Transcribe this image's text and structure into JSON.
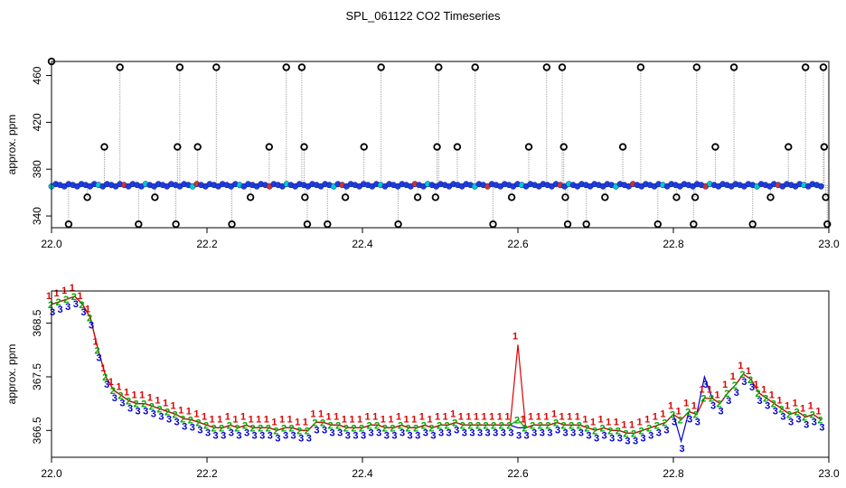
{
  "title": "SPL_061122  CO2 Timeseries",
  "chart_data": [
    {
      "type": "scatter",
      "panel": "top",
      "ylabel": "approx. ppm",
      "xlabel": "",
      "xlim": [
        22.0,
        23.0
      ],
      "ylim": [
        330,
        472
      ],
      "xticks": [
        22.0,
        22.2,
        22.4,
        22.6,
        22.8,
        23.0
      ],
      "xtick_labels": [
        "22.0",
        "22.2",
        "22.4",
        "22.6",
        "22.8",
        "23.0"
      ],
      "yticks": [
        340,
        380,
        420,
        460
      ],
      "ytick_labels": [
        "340",
        "380",
        "420",
        "460"
      ],
      "baseline_ppm": 366.5,
      "outlier_points": [
        {
          "x": 22.0,
          "y": 472
        },
        {
          "x": 22.022,
          "y": 333
        },
        {
          "x": 22.046,
          "y": 356
        },
        {
          "x": 22.068,
          "y": 399
        },
        {
          "x": 22.088,
          "y": 467
        },
        {
          "x": 22.112,
          "y": 333
        },
        {
          "x": 22.133,
          "y": 356
        },
        {
          "x": 22.16,
          "y": 333
        },
        {
          "x": 22.162,
          "y": 399
        },
        {
          "x": 22.165,
          "y": 467
        },
        {
          "x": 22.188,
          "y": 399
        },
        {
          "x": 22.212,
          "y": 467
        },
        {
          "x": 22.232,
          "y": 333
        },
        {
          "x": 22.256,
          "y": 356
        },
        {
          "x": 22.28,
          "y": 399
        },
        {
          "x": 22.302,
          "y": 467
        },
        {
          "x": 22.322,
          "y": 467
        },
        {
          "x": 22.325,
          "y": 399
        },
        {
          "x": 22.326,
          "y": 356
        },
        {
          "x": 22.329,
          "y": 333
        },
        {
          "x": 22.355,
          "y": 333
        },
        {
          "x": 22.378,
          "y": 356
        },
        {
          "x": 22.402,
          "y": 399
        },
        {
          "x": 22.424,
          "y": 467
        },
        {
          "x": 22.446,
          "y": 333
        },
        {
          "x": 22.471,
          "y": 356
        },
        {
          "x": 22.494,
          "y": 356
        },
        {
          "x": 22.496,
          "y": 399
        },
        {
          "x": 22.498,
          "y": 467
        },
        {
          "x": 22.522,
          "y": 399
        },
        {
          "x": 22.545,
          "y": 467
        },
        {
          "x": 22.568,
          "y": 333
        },
        {
          "x": 22.592,
          "y": 356
        },
        {
          "x": 22.614,
          "y": 399
        },
        {
          "x": 22.637,
          "y": 467
        },
        {
          "x": 22.657,
          "y": 467
        },
        {
          "x": 22.659,
          "y": 399
        },
        {
          "x": 22.661,
          "y": 356
        },
        {
          "x": 22.664,
          "y": 333
        },
        {
          "x": 22.688,
          "y": 333
        },
        {
          "x": 22.712,
          "y": 356
        },
        {
          "x": 22.735,
          "y": 399
        },
        {
          "x": 22.758,
          "y": 467
        },
        {
          "x": 22.78,
          "y": 333
        },
        {
          "x": 22.804,
          "y": 356
        },
        {
          "x": 22.826,
          "y": 333
        },
        {
          "x": 22.828,
          "y": 356
        },
        {
          "x": 22.83,
          "y": 467
        },
        {
          "x": 22.854,
          "y": 399
        },
        {
          "x": 22.878,
          "y": 467
        },
        {
          "x": 22.902,
          "y": 333
        },
        {
          "x": 22.925,
          "y": 356
        },
        {
          "x": 22.948,
          "y": 399
        },
        {
          "x": 22.97,
          "y": 467
        },
        {
          "x": 22.993,
          "y": 467
        },
        {
          "x": 22.994,
          "y": 399
        },
        {
          "x": 22.996,
          "y": 356
        },
        {
          "x": 22.998,
          "y": 333
        }
      ]
    },
    {
      "type": "line",
      "panel": "bottom",
      "ylabel": "approx. ppm",
      "xlabel": "",
      "xlim": [
        22.0,
        23.0
      ],
      "ylim": [
        366.0,
        369.1
      ],
      "xticks": [
        22.0,
        22.2,
        22.4,
        22.6,
        22.8,
        23.0
      ],
      "xtick_labels": [
        "22.0",
        "22.2",
        "22.4",
        "22.6",
        "22.8",
        "23.0"
      ],
      "yticks": [
        366.5,
        367.5,
        368.5
      ],
      "ytick_labels": [
        "366.5",
        "367.5",
        "368.5"
      ],
      "x": [
        22.0,
        22.01,
        22.02,
        22.03,
        22.04,
        22.05,
        22.06,
        22.07,
        22.08,
        22.09,
        22.1,
        22.11,
        22.12,
        22.13,
        22.14,
        22.15,
        22.16,
        22.17,
        22.18,
        22.19,
        22.2,
        22.21,
        22.22,
        22.23,
        22.24,
        22.25,
        22.26,
        22.27,
        22.28,
        22.29,
        22.3,
        22.31,
        22.32,
        22.33,
        22.34,
        22.35,
        22.36,
        22.37,
        22.38,
        22.39,
        22.4,
        22.41,
        22.42,
        22.43,
        22.44,
        22.45,
        22.46,
        22.47,
        22.48,
        22.49,
        22.5,
        22.51,
        22.52,
        22.53,
        22.54,
        22.55,
        22.56,
        22.57,
        22.58,
        22.59,
        22.6,
        22.61,
        22.62,
        22.63,
        22.64,
        22.65,
        22.66,
        22.67,
        22.68,
        22.69,
        22.7,
        22.71,
        22.72,
        22.73,
        22.74,
        22.75,
        22.76,
        22.77,
        22.78,
        22.79,
        22.8,
        22.81,
        22.82,
        22.83,
        22.84,
        22.85,
        22.86,
        22.87,
        22.88,
        22.89,
        22.9,
        22.91,
        22.92,
        22.93,
        22.94,
        22.95,
        22.96,
        22.97,
        22.98,
        22.99
      ],
      "series": [
        {
          "name": "1",
          "color": "#dd0000",
          "values": [
            368.85,
            368.9,
            368.95,
            369.0,
            368.85,
            368.6,
            368.0,
            367.5,
            367.25,
            367.15,
            367.05,
            367.0,
            367.0,
            366.95,
            366.9,
            366.85,
            366.8,
            366.72,
            366.7,
            366.65,
            366.6,
            366.55,
            366.55,
            366.6,
            366.55,
            366.6,
            366.55,
            366.55,
            366.55,
            366.5,
            366.55,
            366.55,
            366.5,
            366.5,
            366.65,
            366.65,
            366.6,
            366.6,
            366.55,
            366.55,
            366.55,
            366.6,
            366.6,
            366.55,
            366.55,
            366.6,
            366.55,
            366.55,
            366.6,
            366.55,
            366.6,
            366.6,
            366.65,
            366.6,
            366.6,
            366.6,
            366.6,
            366.6,
            366.6,
            366.6,
            368.1,
            366.55,
            366.6,
            366.6,
            366.6,
            366.65,
            366.6,
            366.6,
            366.6,
            366.55,
            366.5,
            366.55,
            366.5,
            366.5,
            366.45,
            366.45,
            366.5,
            366.55,
            366.6,
            366.65,
            366.8,
            366.7,
            366.85,
            366.8,
            367.1,
            367.1,
            367.0,
            367.2,
            367.35,
            367.55,
            367.45,
            367.2,
            367.1,
            367.0,
            366.9,
            366.8,
            366.85,
            366.75,
            366.8,
            366.7
          ]
        },
        {
          "name": "2",
          "color": "#00aa00",
          "values": [
            368.85,
            368.9,
            368.95,
            369.0,
            368.85,
            368.6,
            368.0,
            367.5,
            367.25,
            367.15,
            367.05,
            367.0,
            367.0,
            366.95,
            366.9,
            366.85,
            366.8,
            366.72,
            366.7,
            366.65,
            366.6,
            366.55,
            366.55,
            366.6,
            366.55,
            366.6,
            366.55,
            366.55,
            366.55,
            366.5,
            366.55,
            366.55,
            366.5,
            366.5,
            366.65,
            366.65,
            366.6,
            366.6,
            366.55,
            366.55,
            366.55,
            366.6,
            366.6,
            366.55,
            366.55,
            366.6,
            366.55,
            366.55,
            366.6,
            366.55,
            366.6,
            366.6,
            366.65,
            366.6,
            366.6,
            366.6,
            366.6,
            366.6,
            366.6,
            366.6,
            366.7,
            366.55,
            366.6,
            366.6,
            366.6,
            366.65,
            366.6,
            366.6,
            366.6,
            366.55,
            366.5,
            366.55,
            366.5,
            366.5,
            366.45,
            366.45,
            366.5,
            366.55,
            366.6,
            366.65,
            366.8,
            366.7,
            366.85,
            366.8,
            367.1,
            367.1,
            367.0,
            367.2,
            367.35,
            367.55,
            367.45,
            367.2,
            367.1,
            367.0,
            366.9,
            366.8,
            366.85,
            366.75,
            366.8,
            366.7
          ]
        },
        {
          "name": "3",
          "color": "#0000cc",
          "values": [
            368.85,
            368.9,
            368.95,
            369.0,
            368.85,
            368.6,
            368.0,
            367.5,
            367.25,
            367.15,
            367.05,
            367.0,
            367.0,
            366.95,
            366.9,
            366.85,
            366.8,
            366.72,
            366.7,
            366.65,
            366.6,
            366.55,
            366.55,
            366.6,
            366.55,
            366.6,
            366.55,
            366.55,
            366.55,
            366.5,
            366.55,
            366.55,
            366.5,
            366.5,
            366.65,
            366.65,
            366.6,
            366.6,
            366.55,
            366.55,
            366.55,
            366.6,
            366.6,
            366.55,
            366.55,
            366.6,
            366.55,
            366.55,
            366.6,
            366.55,
            366.6,
            366.6,
            366.65,
            366.6,
            366.6,
            366.6,
            366.6,
            366.6,
            366.6,
            366.6,
            366.55,
            366.55,
            366.6,
            366.6,
            366.6,
            366.65,
            366.6,
            366.6,
            366.6,
            366.55,
            366.5,
            366.55,
            366.5,
            366.5,
            366.45,
            366.45,
            366.5,
            366.55,
            366.6,
            366.65,
            366.8,
            366.3,
            366.85,
            366.8,
            367.5,
            367.1,
            367.0,
            367.2,
            367.35,
            367.55,
            367.45,
            367.2,
            367.1,
            367.0,
            366.9,
            366.8,
            366.85,
            366.75,
            366.8,
            366.7
          ]
        }
      ]
    }
  ]
}
